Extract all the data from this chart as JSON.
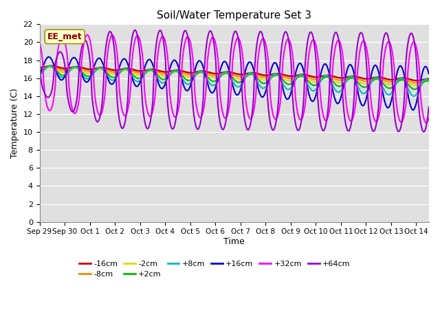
{
  "title": "Soil/Water Temperature Set 3",
  "xlabel": "Time",
  "ylabel": "Temperature (C)",
  "ylim": [
    0,
    22
  ],
  "yticks": [
    0,
    2,
    4,
    6,
    8,
    10,
    12,
    14,
    16,
    18,
    20,
    22
  ],
  "background_color": "#e0e0e0",
  "series": {
    "-16cm": {
      "color": "#cc0000",
      "linewidth": 1.8
    },
    "-8cm": {
      "color": "#ff8800",
      "linewidth": 1.5
    },
    "-2cm": {
      "color": "#dddd00",
      "linewidth": 1.5
    },
    "+2cm": {
      "color": "#00bb00",
      "linewidth": 1.5
    },
    "+8cm": {
      "color": "#00bbbb",
      "linewidth": 1.5
    },
    "+16cm": {
      "color": "#0000cc",
      "linewidth": 1.5
    },
    "+32cm": {
      "color": "#ff00ff",
      "linewidth": 1.5
    },
    "+64cm": {
      "color": "#9900cc",
      "linewidth": 1.5
    }
  },
  "station_label": "EE_met",
  "num_days": 15.5,
  "x_tick_labels": [
    "Sep 29",
    "Sep 30",
    "Oct 1",
    "Oct 2",
    "Oct 3",
    "Oct 4",
    "Oct 5",
    "Oct 6",
    "Oct 7",
    "Oct 8",
    "Oct 9",
    "Oct 10",
    "Oct 11",
    "Oct 12",
    "Oct 13",
    "Oct 14"
  ]
}
